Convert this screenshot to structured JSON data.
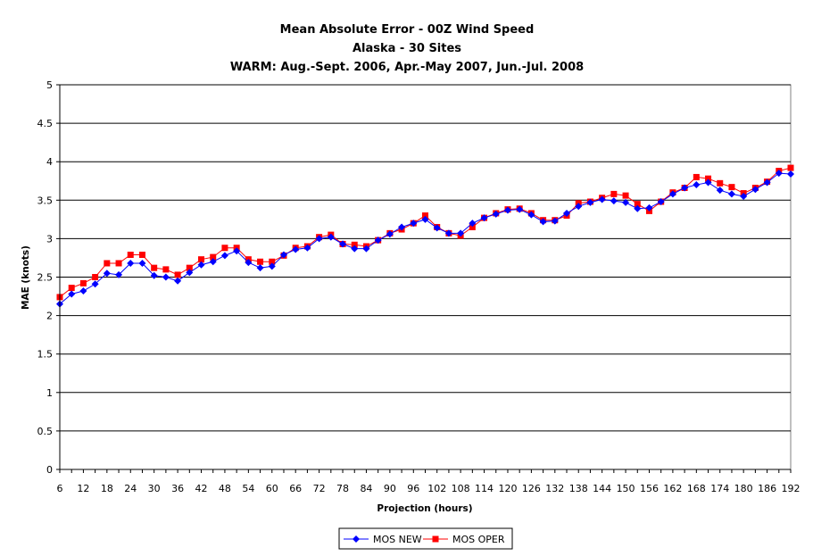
{
  "chart_data": {
    "type": "line",
    "title": "Mean Absolute Error - 00Z Wind Speed",
    "subtitle": "Alaska - 30 Sites",
    "subtitle2": "WARM: Aug.-Sept. 2006, Apr.-May 2007, Jun.-Jul. 2008",
    "xlabel": "Projection (hours)",
    "ylabel": "MAE (knots)",
    "ylim": [
      0,
      5
    ],
    "yticks": [
      "0",
      "0.5",
      "1",
      "1.5",
      "2",
      "2.5",
      "3",
      "3.5",
      "4",
      "4.5",
      "5"
    ],
    "xticks": [
      "6",
      "12",
      "18",
      "24",
      "30",
      "36",
      "42",
      "48",
      "54",
      "60",
      "66",
      "72",
      "78",
      "84",
      "90",
      "96",
      "102",
      "108",
      "114",
      "120",
      "126",
      "132",
      "138",
      "144",
      "150",
      "156",
      "162",
      "168",
      "174",
      "180",
      "186",
      "192"
    ],
    "grid": true,
    "legend_position": "bottom",
    "x": [
      6,
      9,
      12,
      15,
      18,
      21,
      24,
      27,
      30,
      33,
      36,
      39,
      42,
      45,
      48,
      51,
      54,
      57,
      60,
      63,
      66,
      69,
      72,
      75,
      78,
      81,
      84,
      87,
      90,
      93,
      96,
      99,
      102,
      105,
      108,
      111,
      114,
      117,
      120,
      123,
      126,
      129,
      132,
      135,
      138,
      141,
      144,
      147,
      150,
      153,
      156,
      159,
      162,
      165,
      168,
      171,
      174,
      177,
      180,
      183,
      186,
      189,
      192
    ],
    "series": [
      {
        "name": "MOS NEW",
        "color": "#0000ff",
        "marker": "diamond",
        "values": [
          2.15,
          2.28,
          2.32,
          2.41,
          2.55,
          2.53,
          2.68,
          2.68,
          2.52,
          2.5,
          2.45,
          2.56,
          2.66,
          2.7,
          2.78,
          2.84,
          2.69,
          2.62,
          2.64,
          2.79,
          2.86,
          2.88,
          3.0,
          3.02,
          2.93,
          2.87,
          2.87,
          2.98,
          3.06,
          3.15,
          3.2,
          3.25,
          3.14,
          3.07,
          3.07,
          3.2,
          3.27,
          3.32,
          3.37,
          3.38,
          3.31,
          3.22,
          3.23,
          3.33,
          3.42,
          3.47,
          3.51,
          3.49,
          3.47,
          3.39,
          3.4,
          3.48,
          3.58,
          3.66,
          3.7,
          3.73,
          3.63,
          3.58,
          3.55,
          3.64,
          3.73,
          3.85,
          3.84
        ]
      },
      {
        "name": "MOS OPER",
        "color": "#ff0000",
        "marker": "square",
        "values": [
          2.24,
          2.36,
          2.42,
          2.5,
          2.68,
          2.68,
          2.79,
          2.79,
          2.62,
          2.6,
          2.53,
          2.62,
          2.73,
          2.76,
          2.88,
          2.88,
          2.73,
          2.7,
          2.7,
          2.78,
          2.88,
          2.9,
          3.02,
          3.05,
          2.93,
          2.92,
          2.9,
          2.98,
          3.07,
          3.12,
          3.2,
          3.3,
          3.15,
          3.07,
          3.04,
          3.15,
          3.27,
          3.33,
          3.38,
          3.39,
          3.33,
          3.24,
          3.24,
          3.3,
          3.46,
          3.48,
          3.53,
          3.58,
          3.56,
          3.45,
          3.36,
          3.48,
          3.6,
          3.66,
          3.8,
          3.78,
          3.72,
          3.67,
          3.59,
          3.66,
          3.74,
          3.88,
          3.92
        ]
      }
    ]
  }
}
